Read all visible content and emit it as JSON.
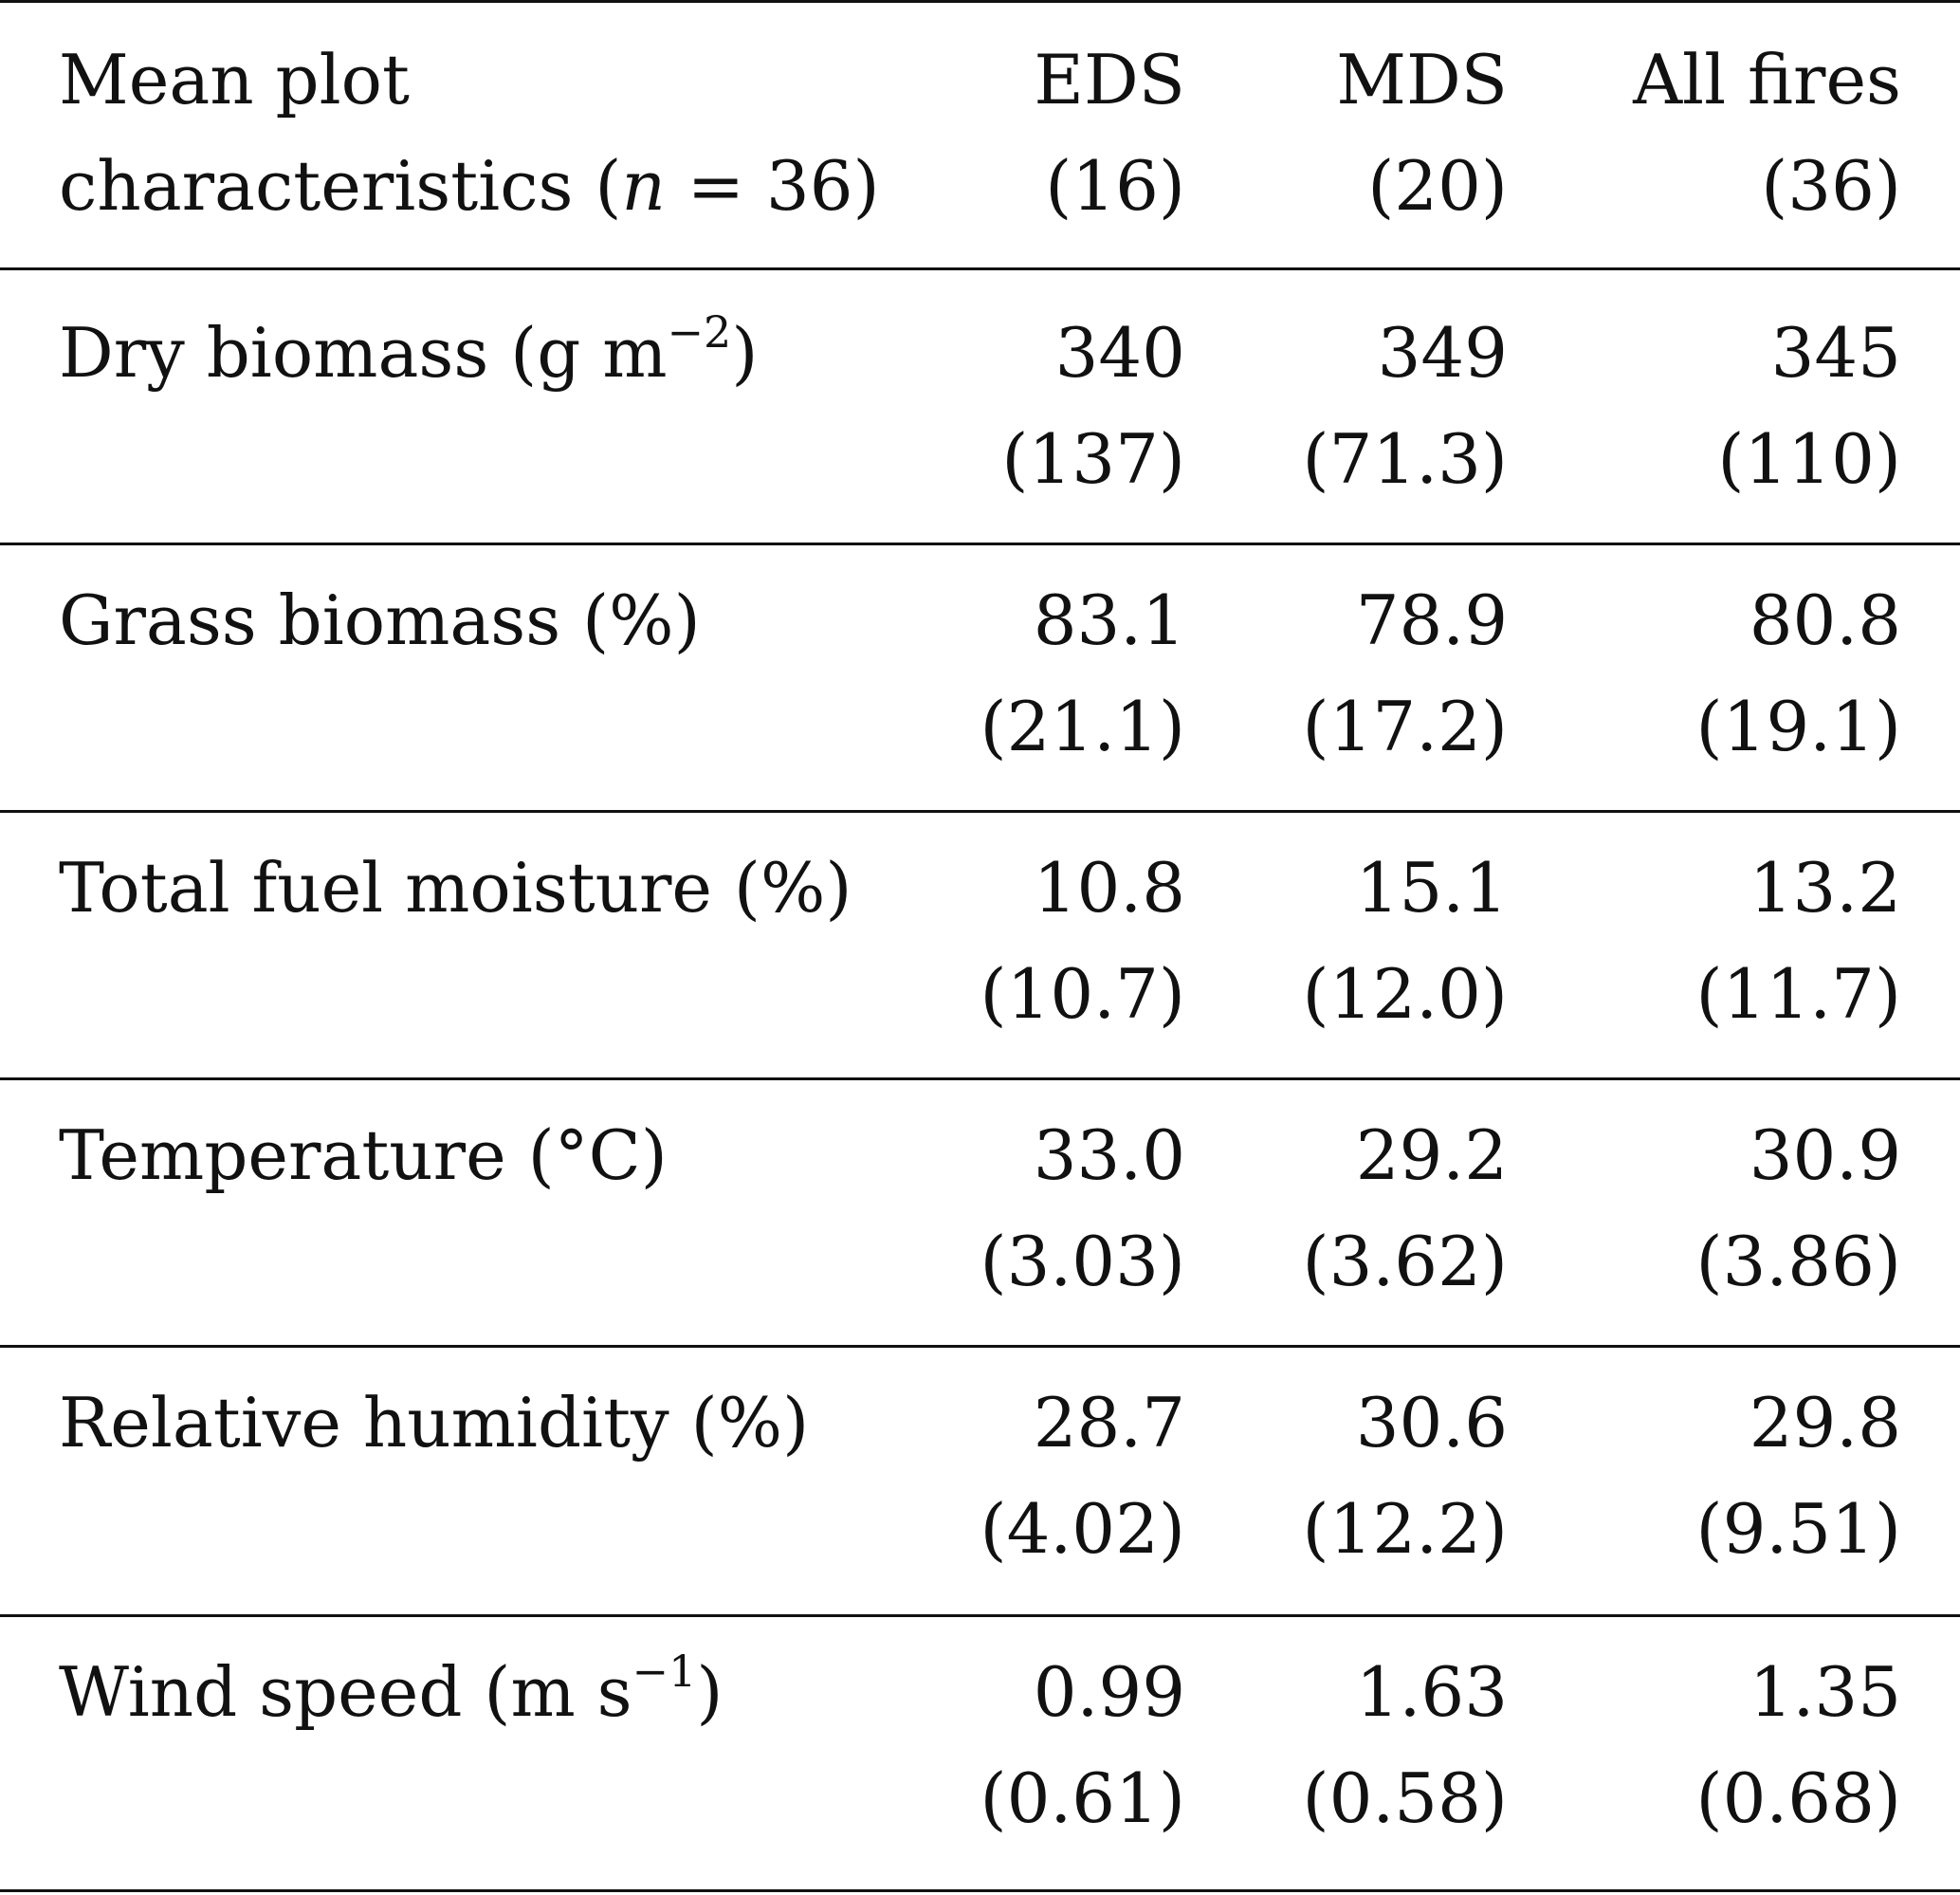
{
  "header": {
    "label_line1": "Mean plot",
    "label_line2_prefix": "characteristics (",
    "label_line2_var": "n",
    "label_line2_suffix": " = 36)",
    "columns": [
      {
        "name": "EDS",
        "count": "(16)"
      },
      {
        "name": "MDS",
        "count": "(20)"
      },
      {
        "name": "All fires",
        "count": "(36)"
      }
    ]
  },
  "rows": [
    {
      "label": "Dry biomass (g m",
      "sup": "−2",
      "label_end": ")",
      "values": [
        "340",
        "349",
        "345"
      ],
      "sd": [
        "(137)",
        "(71.3)",
        "(110)"
      ]
    },
    {
      "label": "Grass biomass (%)",
      "sup": "",
      "label_end": "",
      "values": [
        "83.1",
        "78.9",
        "80.8"
      ],
      "sd": [
        "(21.1)",
        "(17.2)",
        "(19.1)"
      ]
    },
    {
      "label": "Total fuel moisture (%)",
      "sup": "",
      "label_end": "",
      "values": [
        "10.8",
        "15.1",
        "13.2"
      ],
      "sd": [
        "(10.7)",
        "(12.0)",
        "(11.7)"
      ]
    },
    {
      "label": "Temperature (°C)",
      "sup": "",
      "label_end": "",
      "values": [
        "33.0",
        "29.2",
        "30.9"
      ],
      "sd": [
        "(3.03)",
        "(3.62)",
        "(3.86)"
      ]
    },
    {
      "label": "Relative humidity (%)",
      "sup": "",
      "label_end": "",
      "values": [
        "28.7",
        "30.6",
        "29.8"
      ],
      "sd": [
        "(4.02)",
        "(12.2)",
        "(9.51)"
      ]
    },
    {
      "label": "Wind speed (m s",
      "sup": "−1",
      "label_end": ")",
      "values": [
        "0.99",
        "1.63",
        "1.35"
      ],
      "sd": [
        "(0.61)",
        "(0.58)",
        "(0.68)"
      ]
    }
  ]
}
